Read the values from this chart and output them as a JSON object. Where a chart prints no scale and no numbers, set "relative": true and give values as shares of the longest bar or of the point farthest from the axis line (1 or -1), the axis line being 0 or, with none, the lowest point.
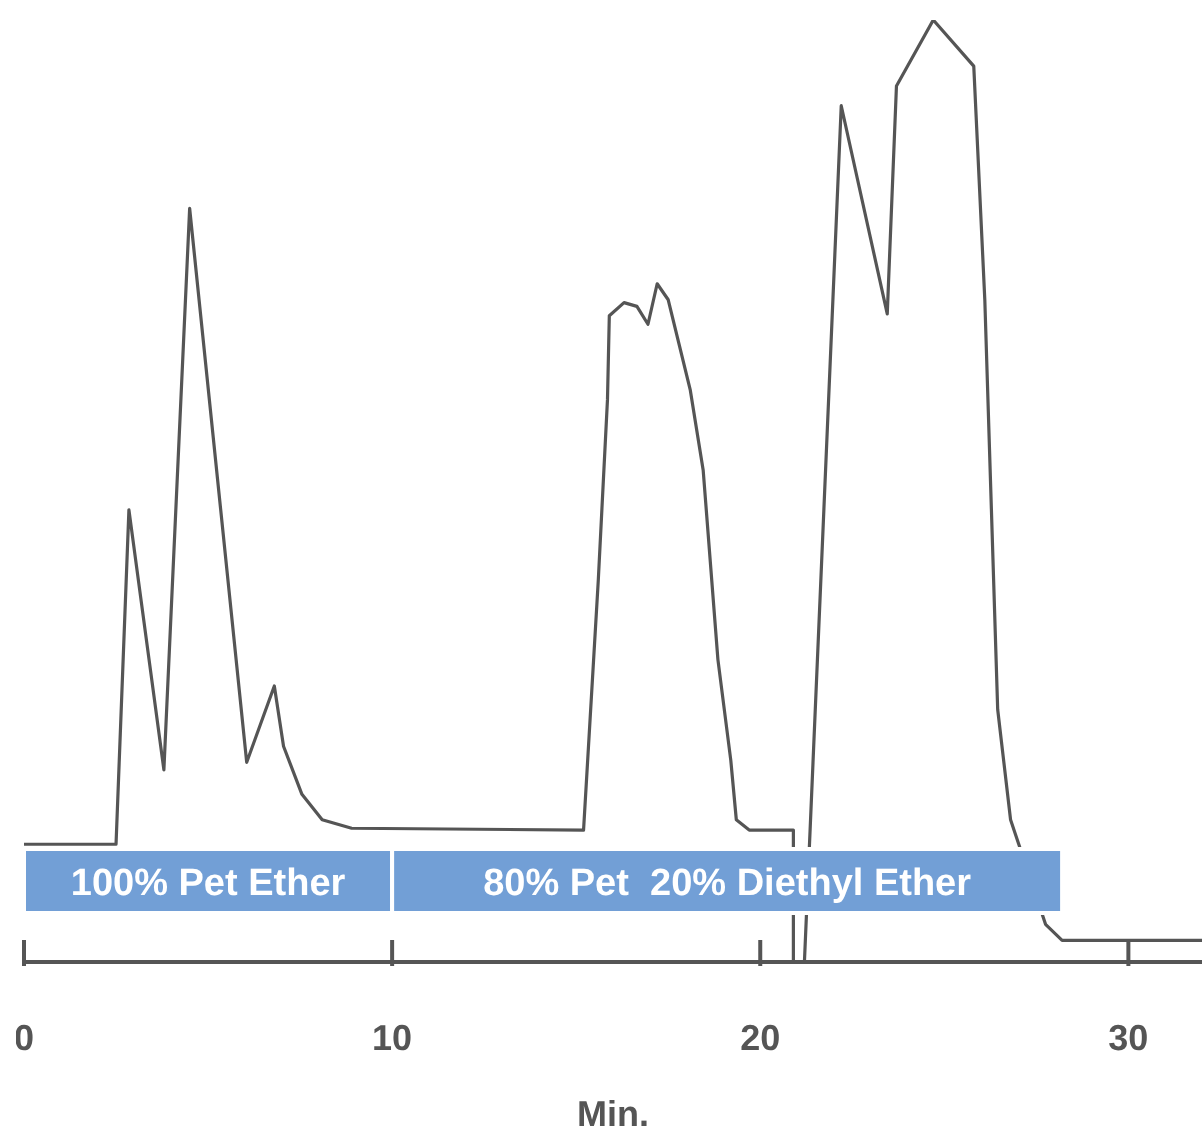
{
  "chart_data": {
    "type": "line",
    "xlabel": "Min.",
    "relative": true,
    "marker": "none",
    "line_style": "solid",
    "xlim": [
      0,
      32
    ],
    "xticks": [
      0,
      10,
      20,
      30
    ],
    "x": [
      0,
      2.5,
      2.85,
      3.8,
      4.5,
      6.05,
      6.8,
      7.05,
      7.55,
      8.1,
      8.9,
      15.2,
      15.6,
      15.85,
      15.9,
      16.3,
      16.65,
      16.95,
      17.2,
      17.5,
      18.1,
      18.45,
      18.85,
      19.2,
      19.35,
      19.7,
      20.9,
      20.9,
      21.2,
      22.2,
      23.45,
      23.7,
      24.7,
      25.8,
      26.1,
      26.45,
      26.8,
      27.75,
      28.2,
      32
    ],
    "series": [
      {
        "color": "#555555",
        "values": [
          0.125,
          0.125,
          0.48,
          0.204,
          0.8,
          0.212,
          0.293,
          0.229,
          0.178,
          0.151,
          0.142,
          0.14,
          0.405,
          0.597,
          0.686,
          0.7,
          0.696,
          0.677,
          0.72,
          0.703,
          0.607,
          0.522,
          0.321,
          0.214,
          0.151,
          0.14,
          0.14,
          0,
          0,
          0.909,
          0.688,
          0.93,
          1,
          0.951,
          0.703,
          0.268,
          0.151,
          0.04,
          0.023,
          0.023
        ]
      }
    ],
    "bands": [
      {
        "axis": "x",
        "from": 0,
        "to": 10,
        "label": "100% Pet Ether",
        "color": "#729fd6"
      },
      {
        "axis": "x",
        "from": 10,
        "to": 28.2,
        "label": "80% Pet  20% Diethyl Ether",
        "color": "#729fd6"
      }
    ]
  }
}
